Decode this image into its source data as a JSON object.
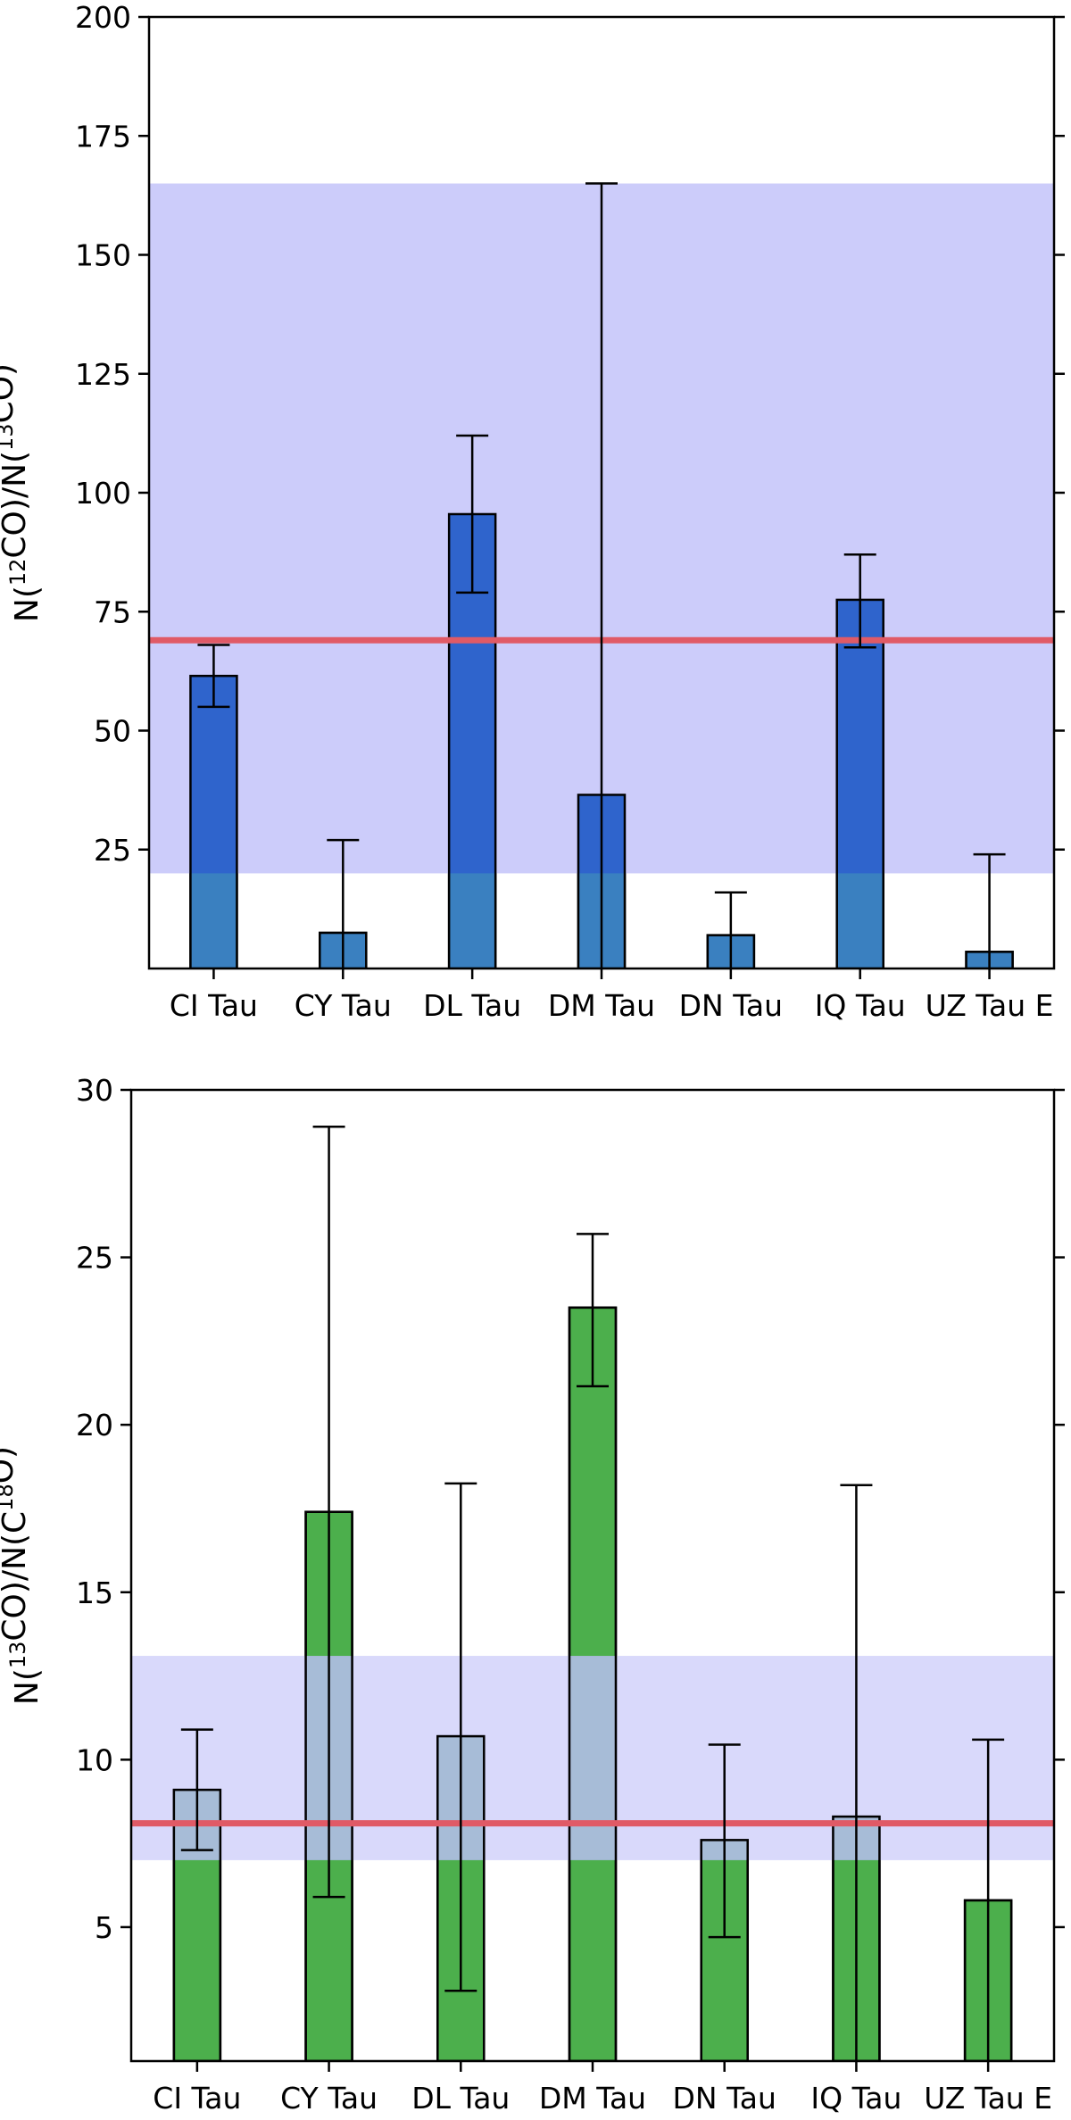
{
  "chart_data": [
    {
      "type": "bar",
      "categories": [
        "CI Tau",
        "CY Tau",
        "DL Tau",
        "DM Tau",
        "DN Tau",
        "IQ Tau",
        "UZ Tau E"
      ],
      "values": [
        61.5,
        7.5,
        95.5,
        36.5,
        7.0,
        77.5,
        3.5
      ],
      "error_low": [
        6.5,
        7.5,
        16.5,
        36.5,
        7.0,
        10.0,
        3.5
      ],
      "error_high": [
        6.5,
        19.5,
        16.5,
        128.5,
        9.0,
        9.5,
        20.5
      ],
      "ylabel": {
        "prefix": "N(",
        "sup1": "12",
        "mid": "CO)/N(",
        "sup2": "13",
        "suffix": "CO)"
      },
      "ylim": [
        0,
        200
      ],
      "yticks": [
        25,
        50,
        75,
        100,
        125,
        150,
        175,
        200
      ],
      "reference_line": 69,
      "reference_band": [
        20,
        165
      ],
      "colors": {
        "bar": "#2f64cc",
        "bar_lower": "#3a80c0",
        "band": "#ccccfa",
        "line": "#e05a66"
      }
    },
    {
      "type": "bar",
      "categories": [
        "CI Tau",
        "CY Tau",
        "DL Tau",
        "DM Tau",
        "DN Tau",
        "IQ Tau",
        "UZ Tau E"
      ],
      "values": [
        9.1,
        17.4,
        10.7,
        23.5,
        7.6,
        8.3,
        5.8
      ],
      "error_low": [
        1.8,
        11.5,
        7.6,
        2.35,
        2.9,
        8.3,
        5.8
      ],
      "error_high": [
        1.8,
        11.5,
        7.55,
        2.2,
        2.85,
        9.9,
        4.8
      ],
      "ylabel": {
        "prefix": "N(",
        "sup1": "13",
        "mid": "CO)/N(C",
        "sup2": "18",
        "suffix": "O)"
      },
      "ylim": [
        1,
        30
      ],
      "yticks": [
        5,
        10,
        15,
        20,
        25,
        30
      ],
      "reference_line": 8.1,
      "reference_band": [
        7,
        13.1
      ],
      "colors": {
        "bar": "#4caf4c",
        "bar_lower": "#3a8c70",
        "band": "#ccccfa",
        "line": "#e05a66"
      }
    }
  ]
}
